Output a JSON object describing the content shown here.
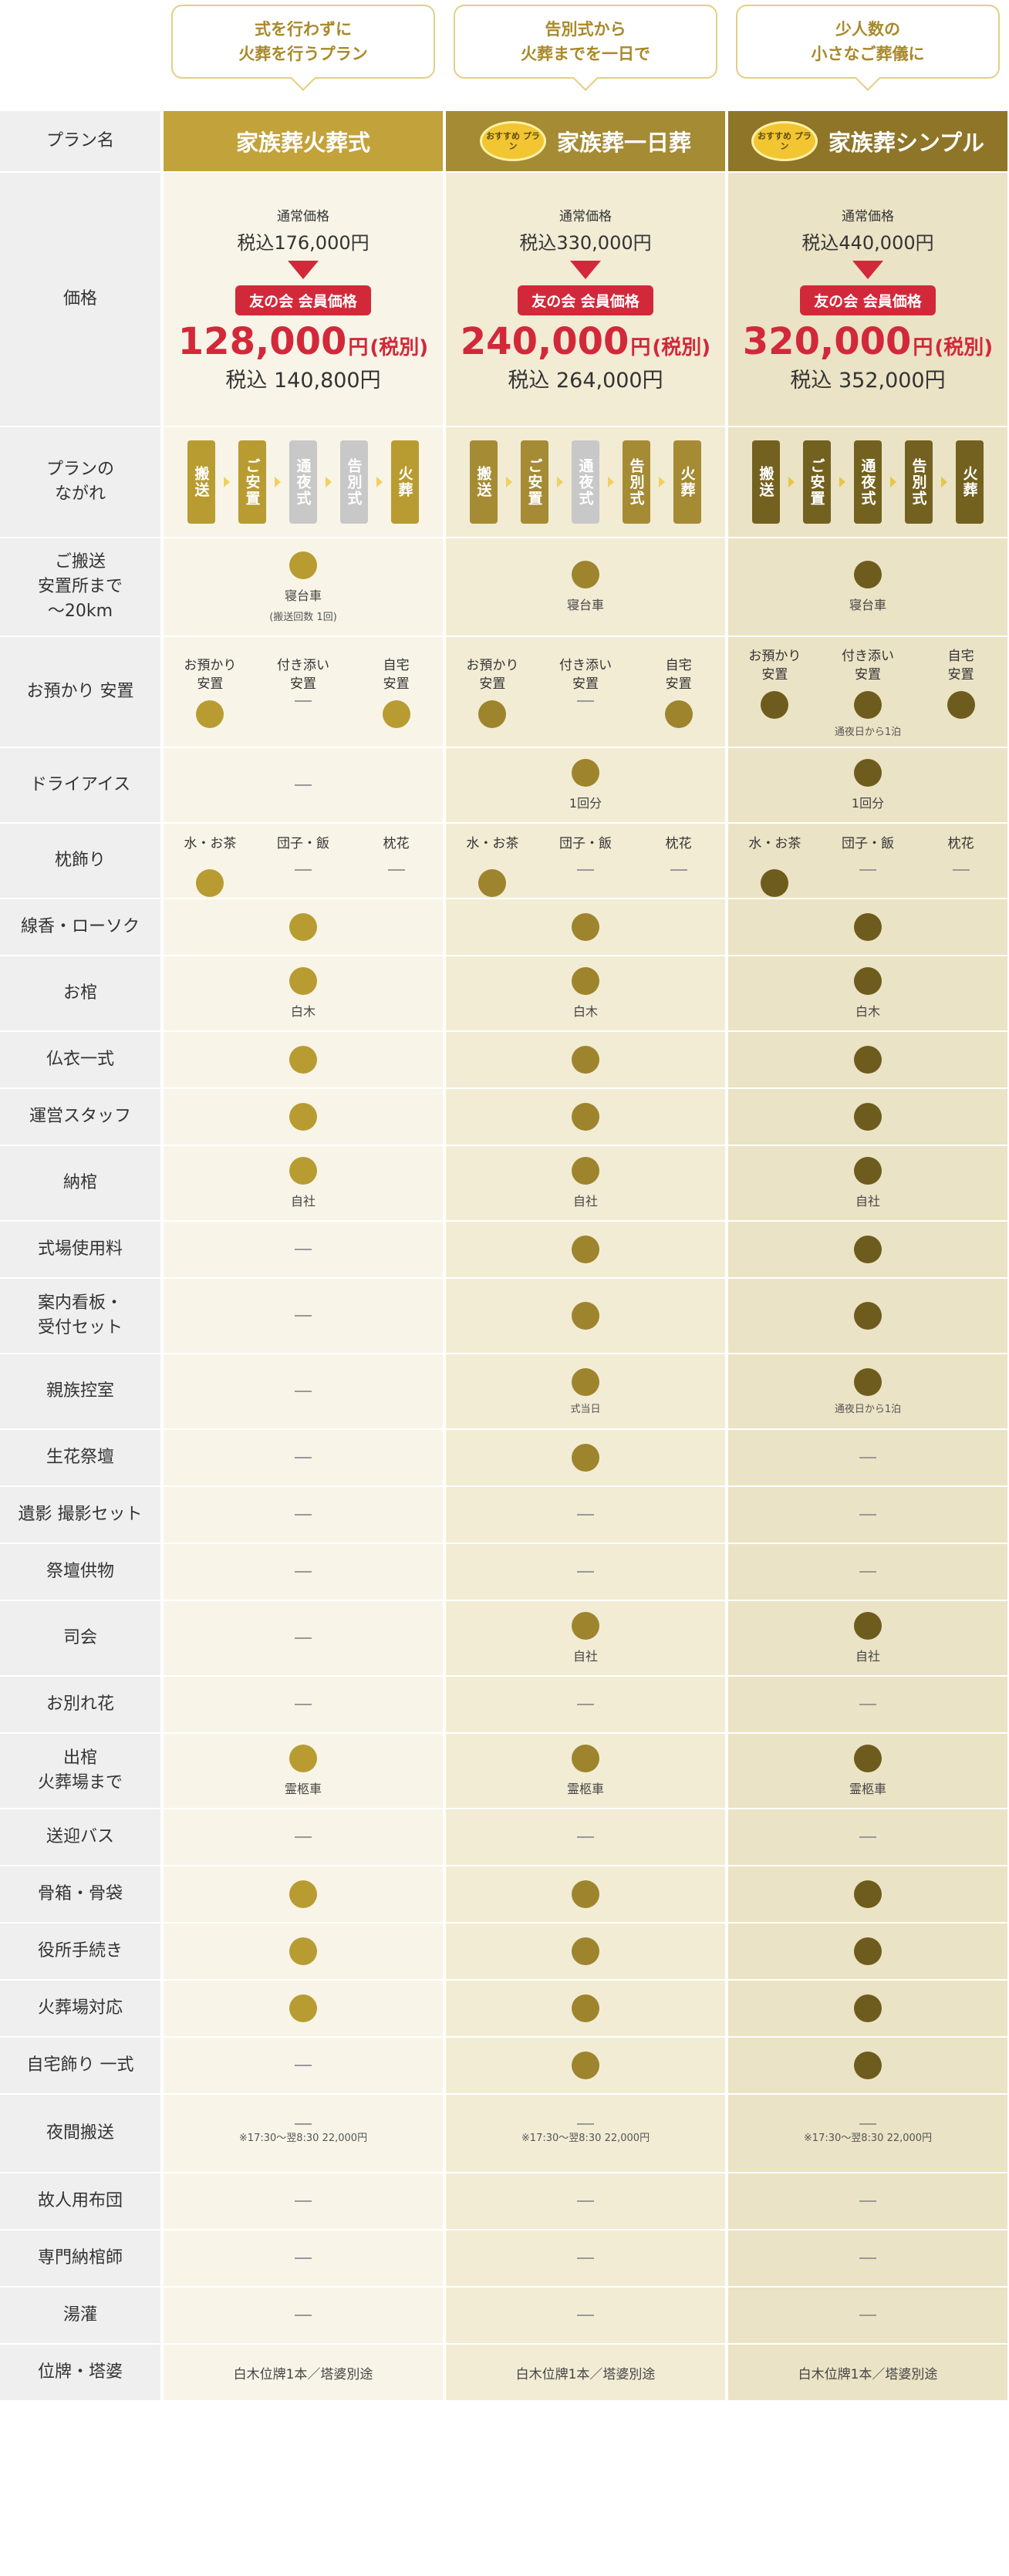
{
  "bubbles": [
    "式を行わずに\n火葬を行うプラン",
    "告別式から\n火葬までを一日で",
    "少人数の\n小さなご葬儀に"
  ],
  "bubbles_lines": [
    [
      "式を行わずに",
      "火葬を行うプラン"
    ],
    [
      "告別式から",
      "火葬までを一日で"
    ],
    [
      "少人数の",
      "小さなご葬儀に"
    ]
  ],
  "plan_label": "プラン名",
  "plans": [
    {
      "name": "家族葬火葬式",
      "badge": ""
    },
    {
      "name": "家族葬一日葬",
      "badge": "おすすめ\nプラン"
    },
    {
      "name": "家族葬シンプル",
      "badge": "おすすめ\nプラン"
    }
  ],
  "badge_text": "おすすめ プラン",
  "price_label": "価格",
  "prices": [
    {
      "regular_label": "通常価格",
      "regular": "税込176,000円",
      "member_label": "友の会 会員価格",
      "member": "128,000",
      "yen": "円",
      "taxex": "(税別)",
      "taxin": "税込 140,800円"
    },
    {
      "regular_label": "通常価格",
      "regular": "税込330,000円",
      "member_label": "友の会 会員価格",
      "member": "240,000",
      "yen": "円",
      "taxex": "(税別)",
      "taxin": "税込 264,000円"
    },
    {
      "regular_label": "通常価格",
      "regular": "税込440,000円",
      "member_label": "友の会 会員価格",
      "member": "320,000",
      "yen": "円",
      "taxex": "(税別)",
      "taxin": "税込 352,000円"
    }
  ],
  "flow_label": "プランの\nながれ",
  "flow_steps": [
    "搬送",
    "ご安置",
    "通夜式",
    "告別式",
    "火葬"
  ],
  "flow_active": [
    [
      true,
      true,
      false,
      false,
      true
    ],
    [
      true,
      true,
      false,
      true,
      true
    ],
    [
      true,
      true,
      true,
      true,
      true
    ]
  ],
  "colors": {
    "plan0": "#c2a23a",
    "plan1": "#a58b34",
    "plan2": "#8e7528",
    "member": "#d2293a"
  },
  "rows": [
    {
      "label": "ご搬送\n安置所まで\n〜20km",
      "cells": [
        {
          "v": "dot",
          "note": "寝台車",
          "small": "(搬送回数 1回)"
        },
        {
          "v": "dot",
          "note": "寝台車"
        },
        {
          "v": "dot",
          "note": "寝台車"
        }
      ]
    },
    {
      "label": "お預かり 安置",
      "type": "sub3",
      "subs": [
        "お預かり\n安置",
        "付き添い\n安置",
        "自宅\n安置"
      ],
      "cells": [
        {
          "vals": [
            "dot",
            "dash",
            "dot"
          ]
        },
        {
          "vals": [
            "dot",
            "dash",
            "dot"
          ]
        },
        {
          "vals": [
            "dot",
            "dot",
            "dot"
          ],
          "small": "通夜日から1泊"
        }
      ]
    },
    {
      "label": "ドライアイス",
      "cells": [
        {
          "v": "dash"
        },
        {
          "v": "dot",
          "note": "1回分"
        },
        {
          "v": "dot",
          "note": "1回分"
        }
      ]
    },
    {
      "label": "枕飾り",
      "type": "sub3",
      "subs": [
        "水・お茶",
        "団子・飯",
        "枕花"
      ],
      "cells": [
        {
          "vals": [
            "dot",
            "dash",
            "dash"
          ]
        },
        {
          "vals": [
            "dot",
            "dash",
            "dash"
          ]
        },
        {
          "vals": [
            "dot",
            "dash",
            "dash"
          ]
        }
      ]
    },
    {
      "label": "線香・ローソク",
      "cells": [
        {
          "v": "dot"
        },
        {
          "v": "dot"
        },
        {
          "v": "dot"
        }
      ]
    },
    {
      "label": "お棺",
      "cells": [
        {
          "v": "dot",
          "note": "白木"
        },
        {
          "v": "dot",
          "note": "白木"
        },
        {
          "v": "dot",
          "note": "白木"
        }
      ]
    },
    {
      "label": "仏衣一式",
      "cells": [
        {
          "v": "dot"
        },
        {
          "v": "dot"
        },
        {
          "v": "dot"
        }
      ]
    },
    {
      "label": "運営スタッフ",
      "cells": [
        {
          "v": "dot"
        },
        {
          "v": "dot"
        },
        {
          "v": "dot"
        }
      ]
    },
    {
      "label": "納棺",
      "cells": [
        {
          "v": "dot",
          "note": "自社"
        },
        {
          "v": "dot",
          "note": "自社"
        },
        {
          "v": "dot",
          "note": "自社"
        }
      ]
    },
    {
      "label": "式場使用料",
      "cells": [
        {
          "v": "dash"
        },
        {
          "v": "dot"
        },
        {
          "v": "dot"
        }
      ]
    },
    {
      "label": "案内看板・\n受付セット",
      "cells": [
        {
          "v": "dash"
        },
        {
          "v": "dot"
        },
        {
          "v": "dot"
        }
      ]
    },
    {
      "label": "親族控室",
      "cells": [
        {
          "v": "dash"
        },
        {
          "v": "dot",
          "small": "式当日"
        },
        {
          "v": "dot",
          "small": "通夜日から1泊"
        }
      ]
    },
    {
      "label": "生花祭壇",
      "cells": [
        {
          "v": "dash"
        },
        {
          "v": "dot"
        },
        {
          "v": "dash"
        }
      ]
    },
    {
      "label": "遺影 撮影セット",
      "cells": [
        {
          "v": "dash"
        },
        {
          "v": "dash"
        },
        {
          "v": "dash"
        }
      ]
    },
    {
      "label": "祭壇供物",
      "cells": [
        {
          "v": "dash"
        },
        {
          "v": "dash"
        },
        {
          "v": "dash"
        }
      ]
    },
    {
      "label": "司会",
      "cells": [
        {
          "v": "dash"
        },
        {
          "v": "dot",
          "note": "自社"
        },
        {
          "v": "dot",
          "note": "自社"
        }
      ]
    },
    {
      "label": "お別れ花",
      "cells": [
        {
          "v": "dash"
        },
        {
          "v": "dash"
        },
        {
          "v": "dash"
        }
      ]
    },
    {
      "label": "出棺\n火葬場まで",
      "cells": [
        {
          "v": "dot",
          "note": "霊柩車"
        },
        {
          "v": "dot",
          "note": "霊柩車"
        },
        {
          "v": "dot",
          "note": "霊柩車"
        }
      ]
    },
    {
      "label": "送迎バス",
      "cells": [
        {
          "v": "dash"
        },
        {
          "v": "dash"
        },
        {
          "v": "dash"
        }
      ]
    },
    {
      "label": "骨箱・骨袋",
      "cells": [
        {
          "v": "dot"
        },
        {
          "v": "dot"
        },
        {
          "v": "dot"
        }
      ]
    },
    {
      "label": "役所手続き",
      "cells": [
        {
          "v": "dot"
        },
        {
          "v": "dot"
        },
        {
          "v": "dot"
        }
      ]
    },
    {
      "label": "火葬場対応",
      "cells": [
        {
          "v": "dot"
        },
        {
          "v": "dot"
        },
        {
          "v": "dot"
        }
      ]
    },
    {
      "label": "自宅飾り 一式",
      "cells": [
        {
          "v": "dash"
        },
        {
          "v": "dot"
        },
        {
          "v": "dot"
        }
      ]
    },
    {
      "label": "夜間搬送",
      "cells": [
        {
          "v": "dash",
          "small": "※17:30〜翌8:30 22,000円"
        },
        {
          "v": "dash",
          "small": "※17:30〜翌8:30 22,000円"
        },
        {
          "v": "dash",
          "small": "※17:30〜翌8:30 22,000円"
        }
      ]
    },
    {
      "label": "故人用布団",
      "cells": [
        {
          "v": "dash"
        },
        {
          "v": "dash"
        },
        {
          "v": "dash"
        }
      ]
    },
    {
      "label": "専門納棺師",
      "cells": [
        {
          "v": "dash"
        },
        {
          "v": "dash"
        },
        {
          "v": "dash"
        }
      ]
    },
    {
      "label": "湯灌",
      "cells": [
        {
          "v": "dash"
        },
        {
          "v": "dash"
        },
        {
          "v": "dash"
        }
      ]
    },
    {
      "label": "位牌・塔婆",
      "cells": [
        {
          "text": "白木位牌1本／塔婆別途"
        },
        {
          "text": "白木位牌1本／塔婆別途"
        },
        {
          "text": "白木位牌1本／塔婆別途"
        }
      ]
    }
  ]
}
